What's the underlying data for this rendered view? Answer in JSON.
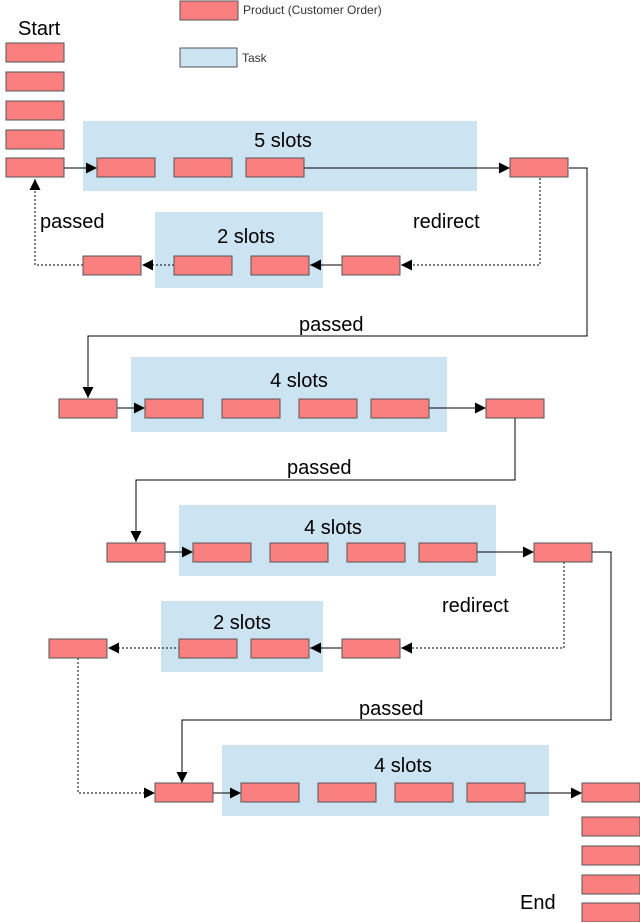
{
  "legend": {
    "product_label": "Product (Customer Order)",
    "task_label": "Task"
  },
  "labels": {
    "start": "Start",
    "end": "End",
    "passed": "passed",
    "redirect": "redirect"
  },
  "tasks": [
    {
      "id": "task-1",
      "slots_label": "5 slots",
      "slots": 5,
      "type": "main"
    },
    {
      "id": "task-1-redirect",
      "slots_label": "2 slots",
      "slots": 2,
      "type": "redirect"
    },
    {
      "id": "task-2",
      "slots_label": "4 slots",
      "slots": 4,
      "type": "main"
    },
    {
      "id": "task-3",
      "slots_label": "4 slots",
      "slots": 4,
      "type": "main"
    },
    {
      "id": "task-3-redirect",
      "slots_label": "2 slots",
      "slots": 2,
      "type": "redirect"
    },
    {
      "id": "task-4",
      "slots_label": "4 slots",
      "slots": 4,
      "type": "main"
    }
  ],
  "colors": {
    "product_fill": "#fa8080",
    "product_stroke": "#555555",
    "task_fill": "#cce4f2",
    "line": "#000000"
  }
}
